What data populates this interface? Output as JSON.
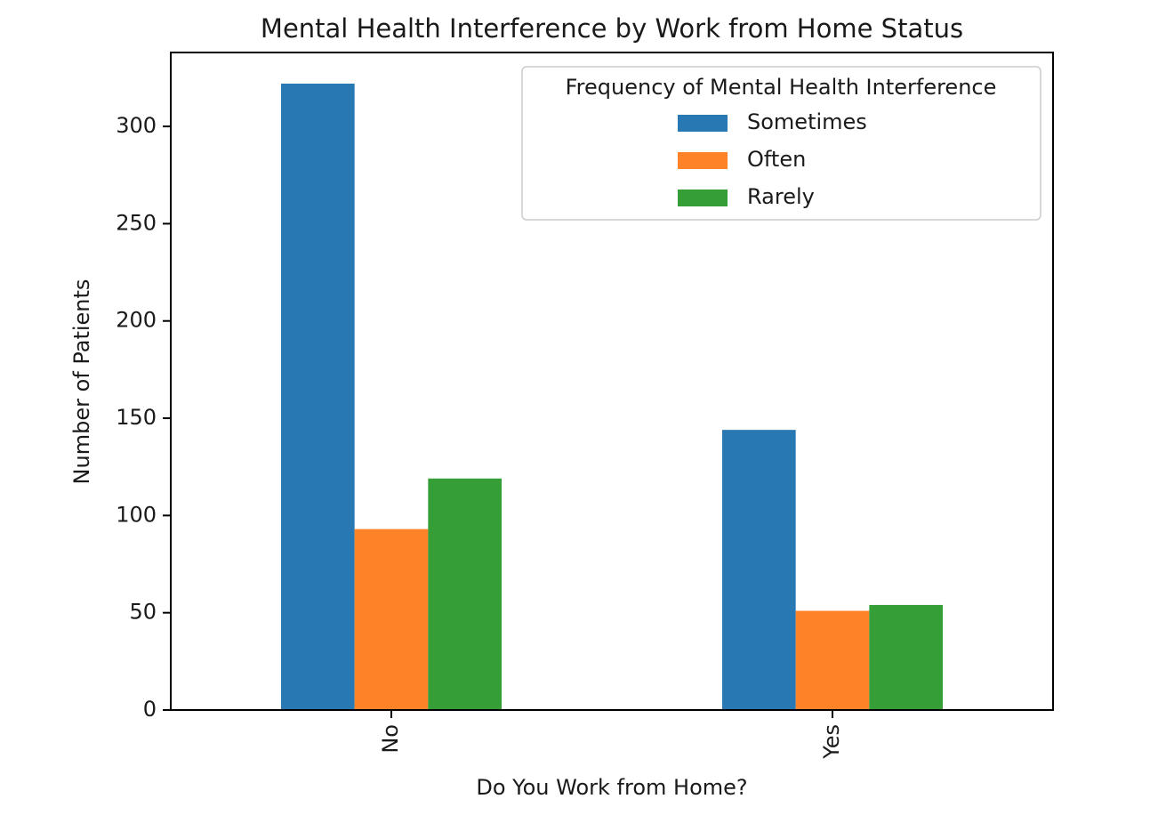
{
  "chart_data": {
    "type": "bar",
    "title": "Mental Health Interference by Work from Home Status",
    "xlabel": "Do You Work from Home?",
    "ylabel": "Number of Patients",
    "categories": [
      "No",
      "Yes"
    ],
    "series": [
      {
        "name": "Sometimes",
        "color": "#2878b4",
        "values": [
          322,
          144
        ]
      },
      {
        "name": "Often",
        "color": "#fd8228",
        "values": [
          93,
          51
        ]
      },
      {
        "name": "Rarely",
        "color": "#369e36",
        "values": [
          119,
          54
        ]
      }
    ],
    "ylim": [
      0,
      338
    ],
    "yticks": [
      0,
      50,
      100,
      150,
      200,
      250,
      300
    ],
    "grid": false,
    "legend": {
      "title": "Frequency of Mental Health Interference",
      "position": "top-right"
    }
  }
}
